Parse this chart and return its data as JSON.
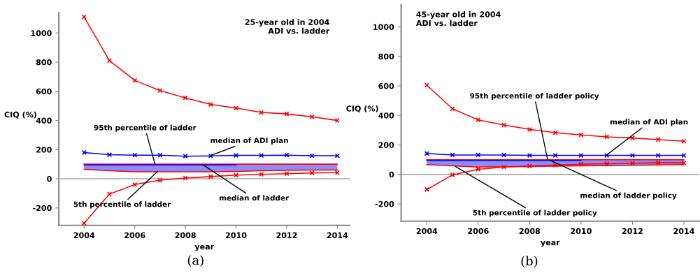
{
  "chart_data": [
    {
      "type": "line",
      "ylabel": "CIQ (%)",
      "xlabel": "year",
      "x": [
        2004,
        2005,
        2006,
        2007,
        2008,
        2009,
        2010,
        2011,
        2012,
        2013,
        2014
      ],
      "xlim": [
        2003,
        2014.5
      ],
      "ylim": [
        -320,
        1140
      ],
      "xticks": [
        2004,
        2006,
        2008,
        2010,
        2012,
        2014
      ],
      "yticks": [
        -200,
        0,
        200,
        400,
        600,
        800,
        1000
      ],
      "grid": false,
      "marker": "cross",
      "line_style": "solid",
      "series": [
        {
          "color": "#ff0000",
          "values": [
            1110,
            810,
            675,
            605,
            555,
            510,
            485,
            455,
            445,
            425,
            400
          ]
        },
        {
          "color": "#ff0000",
          "values": [
            -305,
            -105,
            -40,
            -10,
            5,
            15,
            25,
            30,
            35,
            40,
            42
          ]
        },
        {
          "color": "#0000ff",
          "values": [
            180,
            165,
            162,
            162,
            155,
            157,
            160,
            160,
            162,
            158,
            158
          ]
        },
        {
          "color": "#0000ff",
          "marker": "none",
          "values": [
            95,
            95,
            95,
            95,
            95,
            95,
            95,
            null,
            null,
            null,
            null
          ],
          "lower": [
            65,
            55,
            48,
            48,
            48,
            48,
            50,
            55,
            58,
            60,
            60
          ],
          "upper": [
            100,
            100,
            100,
            100,
            100,
            100,
            100,
            100,
            100,
            100,
            100
          ]
        },
        {
          "color": "#ff0000",
          "marker": "none",
          "values": [
            100,
            100,
            100,
            100,
            100,
            100,
            100,
            100,
            100,
            100,
            100
          ]
        },
        {
          "color": "#ff0000",
          "marker": "none",
          "values": [
            65,
            55,
            48,
            48,
            48,
            48,
            50,
            55,
            58,
            60,
            60
          ]
        }
      ],
      "ref_lines": [
        {
          "axis": "y",
          "value": 0,
          "color": "#aaaaaa"
        }
      ],
      "annotations": [
        "25-year old in 2004\nADI vs. ladder",
        "(a)",
        {
          "text": "95th percentile of ladder",
          "x": 2006.8,
          "y": 100
        },
        {
          "text": "median of ADI plan",
          "x": 2009,
          "y": 160
        },
        {
          "text": "median of ladder",
          "x": 2008.7,
          "y": 95
        },
        {
          "text": "5th percentile of ladder",
          "x": 2006.9,
          "y": 50
        }
      ]
    },
    {
      "type": "line",
      "ylabel": "CIQ (%)",
      "xlabel": "year",
      "x": [
        2004,
        2005,
        2006,
        2007,
        2008,
        2009,
        2010,
        2011,
        2012,
        2013,
        2014
      ],
      "xlim": [
        2003,
        2014.6
      ],
      "ylim": [
        -317,
        1150
      ],
      "xticks": [
        2004,
        2006,
        2008,
        2010,
        2012,
        2014
      ],
      "yticks": [
        -200,
        0,
        200,
        400,
        600,
        800,
        1000
      ],
      "grid": false,
      "marker": "cross",
      "line_style": "solid",
      "series": [
        {
          "color": "#ff0000",
          "values": [
            605,
            445,
            370,
            335,
            305,
            283,
            268,
            255,
            247,
            236,
            225
          ]
        },
        {
          "color": "#ff0000",
          "values": [
            -102,
            -3,
            35,
            50,
            57,
            63,
            69,
            72,
            76,
            79,
            79
          ]
        },
        {
          "color": "#0000ff",
          "values": [
            142,
            132,
            132,
            132,
            129,
            129,
            129,
            129,
            129,
            129,
            129
          ]
        },
        {
          "color": "#0000ff",
          "marker": "none",
          "values": [
            95,
            95,
            95,
            95,
            95,
            95,
            95,
            null,
            null,
            null,
            null
          ],
          "lower": [
            66,
            58,
            50,
            52,
            54,
            56,
            58,
            60,
            62,
            64,
            66
          ],
          "upper": [
            100,
            100,
            100,
            100,
            100,
            100,
            100,
            100,
            100,
            100,
            100
          ]
        },
        {
          "color": "#ff0000",
          "marker": "none",
          "values": [
            100,
            100,
            100,
            100,
            100,
            100,
            100,
            100,
            100,
            100,
            100
          ]
        },
        {
          "color": "#ff0000",
          "marker": "none",
          "values": [
            66,
            58,
            50,
            52,
            54,
            56,
            58,
            60,
            62,
            64,
            66
          ]
        }
      ],
      "ref_lines": [
        {
          "axis": "y",
          "value": 0,
          "color": "#aaaaaa"
        }
      ],
      "annotations": [
        "45-year old in 2004\nADI vs. ladder",
        "(b)",
        {
          "text": "95th percentile of ladder policy",
          "x": 2008.7,
          "y": 100
        },
        {
          "text": "median of ADI plan",
          "x": 2011,
          "y": 132
        },
        {
          "text": "median of ladder policy",
          "x": 2008.8,
          "y": 95
        },
        {
          "text": "5th percentile of ladder policy",
          "x": 2005.1,
          "y": 55
        }
      ]
    }
  ]
}
